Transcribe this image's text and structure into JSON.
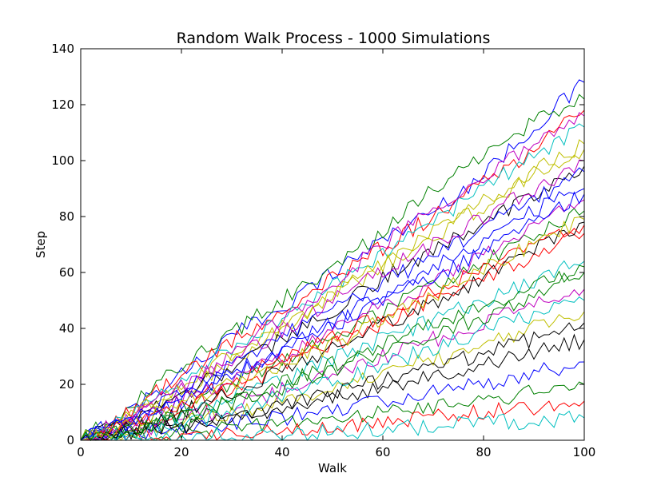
{
  "chart_data": {
    "type": "line",
    "title": "Random Walk Process - 1000 Simulations",
    "xlabel": "Walk",
    "ylabel": "Step",
    "xlim": [
      0,
      100
    ],
    "ylim": [
      0,
      140
    ],
    "xticks": [
      "0",
      "20",
      "40",
      "60",
      "80",
      "100"
    ],
    "yticks": [
      "0",
      "20",
      "40",
      "60",
      "80",
      "100",
      "120",
      "140"
    ],
    "grid": false,
    "legend": "none",
    "n_series": 1000,
    "x": [
      0,
      10,
      20,
      30,
      40,
      50,
      60,
      70,
      80,
      90,
      100
    ],
    "colors": [
      "#0000ff",
      "#008000",
      "#ff0000",
      "#00bfbf",
      "#bf00bf",
      "#bfbf00",
      "#000000"
    ],
    "series": [
      {
        "values": [
          0,
          11,
          24,
          37,
          48,
          60,
          72,
          82,
          95,
          112,
          128
        ]
      },
      {
        "values": [
          0,
          12,
          27,
          38,
          50,
          62,
          74,
          90,
          103,
          114,
          122
        ]
      },
      {
        "values": [
          0,
          10,
          24,
          35,
          47,
          58,
          69,
          80,
          92,
          104,
          118
        ]
      },
      {
        "values": [
          0,
          9,
          22,
          33,
          43,
          55,
          66,
          78,
          90,
          102,
          112
        ]
      },
      {
        "values": [
          0,
          8,
          18,
          30,
          44,
          56,
          70,
          82,
          94,
          106,
          116
        ]
      },
      {
        "values": [
          0,
          8,
          18,
          28,
          40,
          52,
          62,
          74,
          85,
          96,
          106
        ]
      },
      {
        "values": [
          0,
          7,
          16,
          26,
          36,
          46,
          58,
          68,
          78,
          88,
          98
        ]
      },
      {
        "values": [
          0,
          6,
          14,
          23,
          32,
          42,
          52,
          62,
          72,
          82,
          90
        ]
      },
      {
        "values": [
          0,
          5,
          12,
          20,
          28,
          37,
          46,
          55,
          64,
          73,
          82
        ]
      },
      {
        "values": [
          0,
          5,
          11,
          18,
          26,
          34,
          42,
          50,
          58,
          66,
          74
        ]
      },
      {
        "values": [
          0,
          4,
          9,
          15,
          22,
          29,
          36,
          43,
          50,
          57,
          64
        ]
      },
      {
        "values": [
          0,
          3,
          7,
          12,
          18,
          24,
          30,
          36,
          42,
          48,
          54
        ]
      },
      {
        "values": [
          0,
          3,
          6,
          10,
          14,
          19,
          24,
          29,
          34,
          40,
          46
        ]
      },
      {
        "values": [
          0,
          2,
          5,
          8,
          11,
          15,
          19,
          23,
          27,
          31,
          36
        ]
      },
      {
        "values": [
          0,
          2,
          4,
          6,
          8,
          11,
          14,
          17,
          20,
          24,
          28
        ]
      },
      {
        "values": [
          0,
          1,
          3,
          4,
          6,
          8,
          10,
          12,
          14,
          17,
          20
        ]
      },
      {
        "values": [
          0,
          1,
          2,
          3,
          4,
          5,
          6,
          8,
          10,
          12,
          14
        ]
      },
      {
        "values": [
          0,
          0,
          1,
          2,
          2,
          3,
          4,
          5,
          6,
          7,
          8
        ]
      },
      {
        "values": [
          0,
          6,
          15,
          22,
          30,
          40,
          48,
          56,
          66,
          76,
          86
        ]
      },
      {
        "values": [
          0,
          9,
          20,
          31,
          41,
          52,
          63,
          73,
          84,
          95,
          104
        ]
      },
      {
        "values": [
          0,
          4,
          10,
          17,
          25,
          33,
          41,
          49,
          58,
          68,
          78
        ]
      },
      {
        "values": [
          0,
          7,
          17,
          27,
          37,
          47,
          56,
          66,
          76,
          86,
          96
        ]
      },
      {
        "values": [
          0,
          3,
          8,
          14,
          21,
          27,
          34,
          41,
          48,
          55,
          62
        ]
      },
      {
        "values": [
          0,
          5,
          13,
          21,
          29,
          37,
          45,
          53,
          61,
          69,
          77
        ]
      },
      {
        "values": [
          0,
          2,
          6,
          10,
          16,
          21,
          27,
          33,
          39,
          45,
          50
        ]
      },
      {
        "values": [
          0,
          8,
          19,
          29,
          39,
          50,
          60,
          70,
          80,
          90,
          100
        ]
      },
      {
        "values": [
          0,
          6,
          13,
          20,
          27,
          34,
          43,
          52,
          61,
          70,
          79
        ]
      },
      {
        "values": [
          0,
          3,
          5,
          9,
          13,
          17,
          21,
          26,
          31,
          36,
          42
        ]
      },
      {
        "values": [
          0,
          7,
          16,
          24,
          33,
          41,
          50,
          58,
          68,
          78,
          88
        ]
      },
      {
        "values": [
          0,
          4,
          9,
          13,
          19,
          25,
          32,
          38,
          44,
          52,
          60
        ]
      }
    ]
  }
}
